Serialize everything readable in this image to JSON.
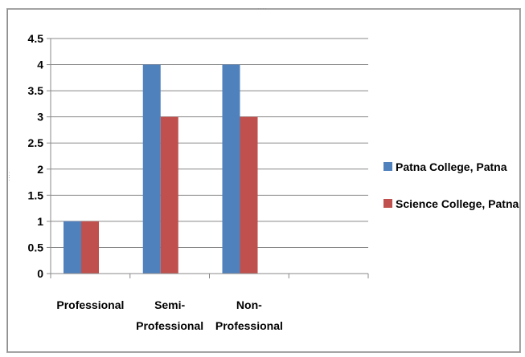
{
  "chart_data": {
    "type": "bar",
    "title": "",
    "xlabel": "",
    "ylabel": "",
    "categories": [
      [
        "Professional"
      ],
      [
        "Semi-",
        "Professional"
      ],
      [
        "Non-",
        "Professional"
      ],
      [
        ""
      ]
    ],
    "series": [
      {
        "name": "Patna College, Patna",
        "values": [
          1,
          4,
          4,
          null
        ],
        "color": "#4f81bd"
      },
      {
        "name": "Science College, Patna",
        "values": [
          1,
          3,
          3,
          null
        ],
        "color": "#c0504d"
      }
    ],
    "ylim": [
      0,
      4.5
    ],
    "yticks": [
      "0",
      "0.5",
      "1",
      "1.5",
      "2",
      "2.5",
      "3",
      "3.5",
      "4",
      "4.5"
    ],
    "grid": true,
    "legend": "right"
  }
}
